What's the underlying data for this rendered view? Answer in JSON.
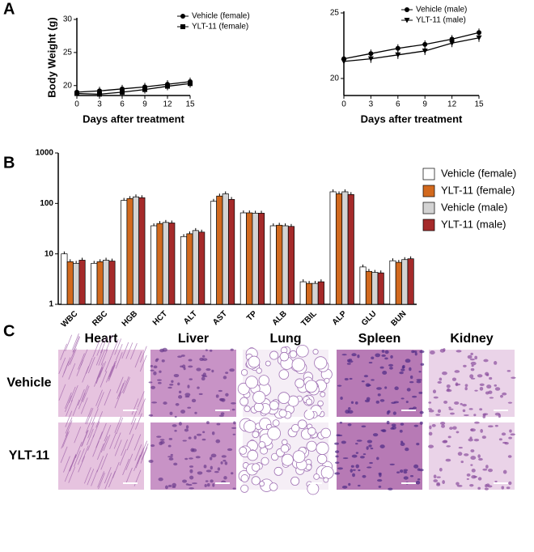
{
  "panel_labels": [
    "A",
    "B",
    "C"
  ],
  "chart_data": [
    {
      "type": "line",
      "xlabel": "Days after treatment",
      "ylabel": "Body Weight (g)",
      "x": [
        0,
        3,
        6,
        9,
        12,
        15
      ],
      "xlim": [
        0,
        15
      ],
      "xticks": [
        0,
        3,
        6,
        9,
        12,
        15
      ],
      "ylim": [
        18.5,
        30
      ],
      "yticks": [
        20,
        25,
        30
      ],
      "legend": "upper left",
      "series": [
        {
          "name": "Vehicle (female)",
          "color": "#000000",
          "marker": "circle",
          "values": [
            19.0,
            19.2,
            19.5,
            19.8,
            20.2,
            20.6
          ]
        },
        {
          "name": "YLT-11 (female)",
          "color": "#000000",
          "marker": "square",
          "values": [
            18.8,
            18.7,
            19.0,
            19.4,
            19.9,
            20.3
          ]
        }
      ]
    },
    {
      "type": "line",
      "xlabel": "Days after treatment",
      "ylabel": "",
      "x": [
        0,
        3,
        6,
        9,
        12,
        15
      ],
      "xlim": [
        0,
        15
      ],
      "xticks": [
        0,
        3,
        6,
        9,
        12,
        15
      ],
      "ylim": [
        18.7,
        25
      ],
      "yticks": [
        20,
        25
      ],
      "legend": "upper right",
      "series": [
        {
          "name": "Vehicle (male)",
          "color": "#000000",
          "marker": "circle",
          "values": [
            21.5,
            21.9,
            22.3,
            22.6,
            23.0,
            23.5
          ]
        },
        {
          "name": "YLT-11 (male)",
          "color": "#000000",
          "marker": "triangle-down",
          "values": [
            21.3,
            21.5,
            21.8,
            22.1,
            22.7,
            23.1
          ]
        }
      ]
    },
    {
      "type": "bar",
      "log_scale": true,
      "ylim": [
        1,
        1000
      ],
      "yticks": [
        1,
        10,
        100,
        1000
      ],
      "legend": "right",
      "categories": [
        "WBC",
        "RBC",
        "HGB",
        "HCT",
        "ALT",
        "AST",
        "TP",
        "ALB",
        "TBIL",
        "ALP",
        "GLU",
        "BUN"
      ],
      "series": [
        {
          "name": "Vehicle (female)",
          "color": "#ffffff",
          "values": [
            10,
            6.5,
            115,
            36,
            22,
            110,
            65,
            36,
            2.8,
            170,
            5.5,
            7.3
          ]
        },
        {
          "name": "YLT-11 (female)",
          "color": "#d2691e",
          "values": [
            7,
            7,
            125,
            40,
            25,
            140,
            65,
            37,
            2.6,
            155,
            4.5,
            6.8
          ]
        },
        {
          "name": "Vehicle  (male)",
          "color": "#d3d3d3",
          "values": [
            6.5,
            7.5,
            135,
            42,
            29,
            155,
            64,
            36,
            2.6,
            170,
            4.3,
            7.7
          ]
        },
        {
          "name": "YLT-11  (male)",
          "color": "#a52a2a",
          "values": [
            7.5,
            7.2,
            130,
            41,
            27,
            120,
            64,
            35,
            2.8,
            150,
            4.2,
            8
          ]
        }
      ]
    }
  ],
  "histology": {
    "columns": [
      "Heart",
      "Liver",
      "Lung",
      "Spleen",
      "Kidney"
    ],
    "rows": [
      "Vehicle",
      "YLT-11"
    ]
  }
}
